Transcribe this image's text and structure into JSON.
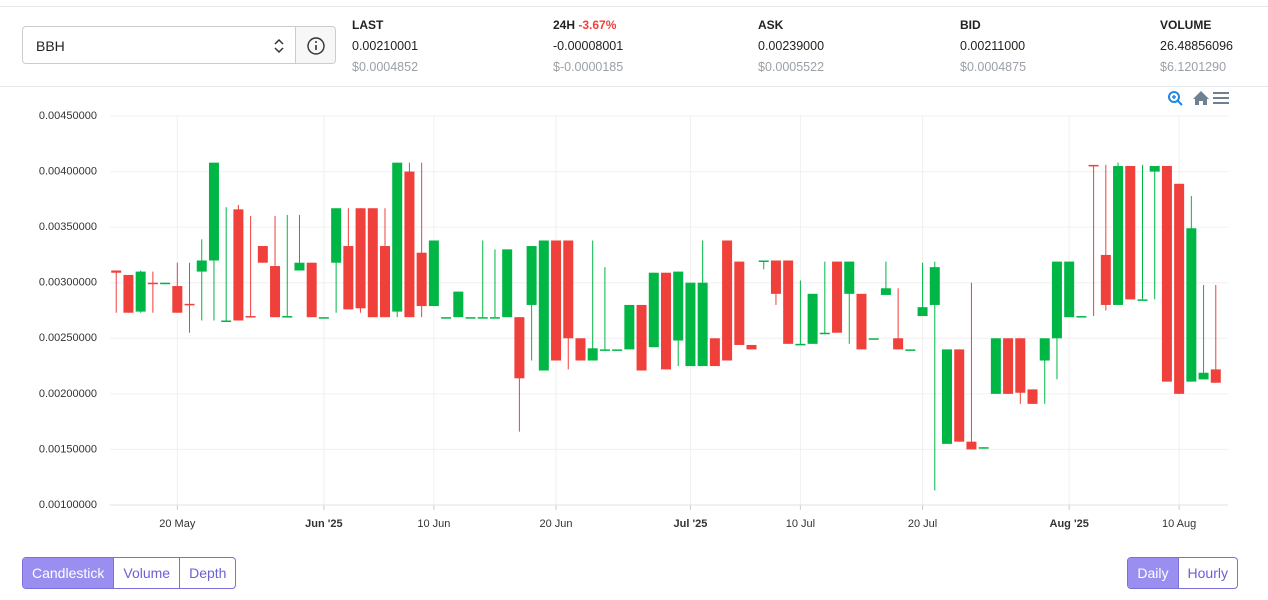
{
  "selector": {
    "value": "BBH"
  },
  "stats": [
    {
      "label": "LAST",
      "value": "0.00210001",
      "usd": "$0.0004852"
    },
    {
      "label": "24H",
      "change": "-3.67%",
      "value": "-0.00008001",
      "usd": "$-0.0000185"
    },
    {
      "label": "ASK",
      "value": "0.00239000",
      "usd": "$0.0005522"
    },
    {
      "label": "BID",
      "value": "0.00211000",
      "usd": "$0.0004875"
    },
    {
      "label": "VOLUME",
      "value": "26.48856096",
      "usd": "$6.1201290"
    }
  ],
  "chart_tabs": [
    "Candlestick",
    "Volume",
    "Depth"
  ],
  "interval_tabs": [
    "Daily",
    "Hourly"
  ],
  "chart_data": {
    "type": "candlestick",
    "up_color": "#00b746",
    "down_color": "#ef403c",
    "grid": true,
    "x": [
      "2025-05-15",
      "2025-05-16",
      "2025-05-17",
      "2025-05-18",
      "2025-05-19",
      "2025-05-20",
      "2025-05-21",
      "2025-05-22",
      "2025-05-23",
      "2025-05-24",
      "2025-05-25",
      "2025-05-26",
      "2025-05-27",
      "2025-05-28",
      "2025-05-29",
      "2025-05-30",
      "2025-05-31",
      "2025-06-01",
      "2025-06-02",
      "2025-06-03",
      "2025-06-04",
      "2025-06-05",
      "2025-06-06",
      "2025-06-07",
      "2025-06-08",
      "2025-06-09",
      "2025-06-10",
      "2025-06-11",
      "2025-06-12",
      "2025-06-13",
      "2025-06-14",
      "2025-06-15",
      "2025-06-16",
      "2025-06-17",
      "2025-06-18",
      "2025-06-19",
      "2025-06-20",
      "2025-06-21",
      "2025-06-22",
      "2025-06-23",
      "2025-06-24",
      "2025-06-25",
      "2025-06-26",
      "2025-06-27",
      "2025-06-28",
      "2025-06-29",
      "2025-06-30",
      "2025-07-01",
      "2025-07-02",
      "2025-07-03",
      "2025-07-04",
      "2025-07-05",
      "2025-07-06",
      "2025-07-07",
      "2025-07-08",
      "2025-07-09",
      "2025-07-10",
      "2025-07-11",
      "2025-07-12",
      "2025-07-13",
      "2025-07-14",
      "2025-07-15",
      "2025-07-16",
      "2025-07-17",
      "2025-07-18",
      "2025-07-19",
      "2025-07-20",
      "2025-07-21",
      "2025-07-22",
      "2025-07-23",
      "2025-07-24",
      "2025-07-25",
      "2025-07-26",
      "2025-07-27",
      "2025-07-28",
      "2025-07-29",
      "2025-07-30",
      "2025-07-31",
      "2025-08-01",
      "2025-08-02",
      "2025-08-03",
      "2025-08-04",
      "2025-08-05",
      "2025-08-06",
      "2025-08-07",
      "2025-08-08",
      "2025-08-09",
      "2025-08-10",
      "2025-08-11",
      "2025-08-12",
      "2025-08-13"
    ],
    "open": [
      0.00311,
      0.00307,
      0.00274,
      0.003,
      0.003,
      0.00297,
      0.00281,
      0.0031,
      0.0032,
      0.00266,
      0.00366,
      0.0027,
      0.00333,
      0.00315,
      0.00269,
      0.00311,
      0.00318,
      0.00269,
      0.00318,
      0.00333,
      0.00367,
      0.00367,
      0.00333,
      0.00274,
      0.004,
      0.00327,
      0.00279,
      0.00269,
      0.00269,
      0.00269,
      0.00269,
      0.00269,
      0.00269,
      0.00269,
      0.0028,
      0.00221,
      0.00338,
      0.00338,
      0.0025,
      0.0023,
      0.0024,
      0.0024,
      0.0024,
      0.0028,
      0.00242,
      0.00309,
      0.00248,
      0.00225,
      0.00225,
      0.0025,
      0.00338,
      0.00319,
      0.00244,
      0.0032,
      0.0032,
      0.0032,
      0.00245,
      0.00245,
      0.00254,
      0.00319,
      0.0029,
      0.0029,
      0.0025,
      0.00289,
      0.0025,
      0.0024,
      0.0027,
      0.0028,
      0.00155,
      0.0024,
      0.00157,
      0.00151,
      0.002,
      0.0025,
      0.0025,
      0.00204,
      0.0023,
      0.0025,
      0.00269,
      0.0027,
      0.00406,
      0.00325,
      0.0028,
      0.00405,
      0.00285,
      0.004,
      0.00405,
      0.00389,
      0.00211,
      0.00213,
      0.00222
    ],
    "high": [
      0.00311,
      0.00307,
      0.00311,
      0.0031,
      0.003,
      0.00318,
      0.00318,
      0.00339,
      0.00408,
      0.00368,
      0.0037,
      0.0036,
      0.00333,
      0.0036,
      0.00361,
      0.00361,
      0.00318,
      0.00269,
      0.00367,
      0.00367,
      0.00367,
      0.00367,
      0.00367,
      0.00408,
      0.00408,
      0.00408,
      0.00338,
      0.00269,
      0.00292,
      0.00269,
      0.00338,
      0.0033,
      0.0033,
      0.00269,
      0.00333,
      0.00338,
      0.00338,
      0.00338,
      0.0025,
      0.00338,
      0.00314,
      0.0024,
      0.0028,
      0.0028,
      0.00309,
      0.00309,
      0.0031,
      0.003,
      0.00338,
      0.0025,
      0.00338,
      0.00319,
      0.00244,
      0.0032,
      0.0032,
      0.0032,
      0.00302,
      0.0029,
      0.00319,
      0.00319,
      0.00319,
      0.0029,
      0.0025,
      0.00319,
      0.00295,
      0.0024,
      0.00318,
      0.00319,
      0.0024,
      0.0024,
      0.003,
      0.00152,
      0.0025,
      0.0025,
      0.0025,
      0.00204,
      0.0025,
      0.00319,
      0.00319,
      0.0027,
      0.00406,
      0.00406,
      0.00408,
      0.00405,
      0.00406,
      0.00405,
      0.00405,
      0.00389,
      0.00378,
      0.00298,
      0.00298
    ],
    "low": [
      0.00273,
      0.00273,
      0.00273,
      0.00273,
      0.003,
      0.00273,
      0.00255,
      0.00266,
      0.00266,
      0.00266,
      0.00266,
      0.00269,
      0.00318,
      0.00269,
      0.00269,
      0.00311,
      0.00269,
      0.00269,
      0.00273,
      0.00276,
      0.00273,
      0.00269,
      0.00269,
      0.00269,
      0.00269,
      0.00269,
      0.00279,
      0.00269,
      0.00269,
      0.00269,
      0.00269,
      0.00269,
      0.00269,
      0.00166,
      0.0023,
      0.00221,
      0.0023,
      0.00222,
      0.0023,
      0.0023,
      0.0024,
      0.0024,
      0.0024,
      0.00221,
      0.00242,
      0.00222,
      0.00225,
      0.00225,
      0.00225,
      0.00225,
      0.0023,
      0.00244,
      0.0024,
      0.00312,
      0.0028,
      0.00245,
      0.00245,
      0.00245,
      0.00254,
      0.00255,
      0.00245,
      0.0024,
      0.0025,
      0.00289,
      0.0024,
      0.0024,
      0.0027,
      0.00113,
      0.00155,
      0.00157,
      0.0015,
      0.00151,
      0.002,
      0.002,
      0.00191,
      0.00191,
      0.00191,
      0.00213,
      0.00269,
      0.0027,
      0.0027,
      0.00275,
      0.0028,
      0.00285,
      0.00285,
      0.00285,
      0.00211,
      0.002,
      0.00211,
      0.00213,
      0.0021
    ],
    "close": [
      0.00309,
      0.00273,
      0.0031,
      0.00299,
      0.003,
      0.00273,
      0.0028,
      0.0032,
      0.00408,
      0.00266,
      0.00266,
      0.00269,
      0.00318,
      0.00269,
      0.0027,
      0.00318,
      0.00269,
      0.00269,
      0.00367,
      0.00276,
      0.00277,
      0.00269,
      0.00269,
      0.00408,
      0.00269,
      0.00279,
      0.00338,
      0.00269,
      0.00292,
      0.00269,
      0.00269,
      0.00269,
      0.0033,
      0.00214,
      0.00333,
      0.00338,
      0.0023,
      0.0025,
      0.0023,
      0.00241,
      0.0024,
      0.0024,
      0.0028,
      0.00221,
      0.00309,
      0.00222,
      0.0031,
      0.003,
      0.003,
      0.00225,
      0.0023,
      0.00244,
      0.0024,
      0.0032,
      0.0029,
      0.00245,
      0.00245,
      0.0029,
      0.00255,
      0.00255,
      0.00319,
      0.0024,
      0.0025,
      0.00295,
      0.0024,
      0.0024,
      0.00278,
      0.00314,
      0.0024,
      0.00157,
      0.0015,
      0.00152,
      0.0025,
      0.002,
      0.00201,
      0.00191,
      0.0025,
      0.00319,
      0.00319,
      0.0027,
      0.00405,
      0.0028,
      0.00405,
      0.00285,
      0.00285,
      0.00405,
      0.00211,
      0.002,
      0.00349,
      0.00219,
      0.0021
    ],
    "xlim": [
      "2025-05-14",
      "2025-08-14"
    ],
    "xticks": [
      {
        "value": "2025-05-20",
        "label": "20 May"
      },
      {
        "value": "2025-06-01",
        "label": "Jun '25"
      },
      {
        "value": "2025-06-10",
        "label": "10 Jun"
      },
      {
        "value": "2025-06-20",
        "label": "20 Jun"
      },
      {
        "value": "2025-07-01",
        "label": "Jul '25"
      },
      {
        "value": "2025-07-10",
        "label": "10 Jul"
      },
      {
        "value": "2025-07-20",
        "label": "20 Jul"
      },
      {
        "value": "2025-08-01",
        "label": "Aug '25"
      },
      {
        "value": "2025-08-10",
        "label": "10 Aug"
      }
    ],
    "ylim": [
      0.001,
      0.0045
    ],
    "yticks": [
      {
        "value": 0.001,
        "label": "0.00100000"
      },
      {
        "value": 0.0015,
        "label": "0.00150000"
      },
      {
        "value": 0.002,
        "label": "0.00200000"
      },
      {
        "value": 0.0025,
        "label": "0.00250000"
      },
      {
        "value": 0.003,
        "label": "0.00300000"
      },
      {
        "value": 0.0035,
        "label": "0.00350000"
      },
      {
        "value": 0.004,
        "label": "0.00400000"
      },
      {
        "value": 0.0045,
        "label": "0.00450000"
      }
    ]
  }
}
